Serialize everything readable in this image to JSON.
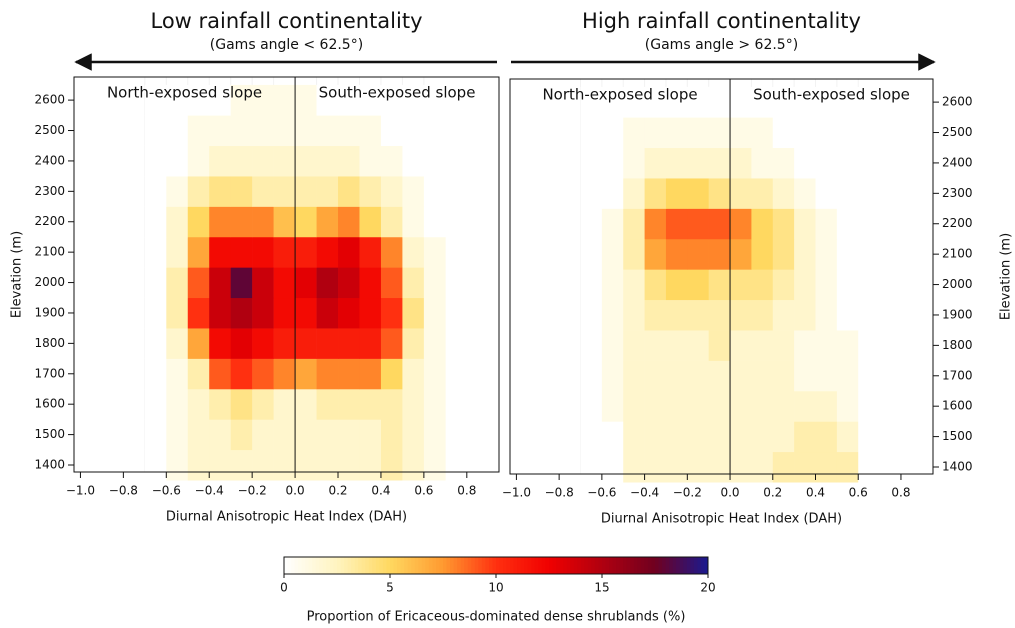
{
  "chart_data": [
    {
      "type": "heatmap",
      "title": "Low rainfall continentality",
      "subtitle": "(Gams angle < 62.5°)",
      "left_label": "North-exposed slope",
      "right_label": "South-exposed slope",
      "xlabel": "Diurnal Anisotropic Heat Index (DAH)",
      "ylabel": "Elevation (m)",
      "yaxis_side": "left",
      "vline": 0,
      "xlim": [
        -1.03,
        0.95
      ],
      "ylim": [
        1377,
        2676
      ],
      "xticks": [
        {
          "value": -1.0,
          "label": "−1.0"
        },
        {
          "value": -0.8,
          "label": "−0.8"
        },
        {
          "value": -0.6,
          "label": "−0.6"
        },
        {
          "value": -0.4,
          "label": "−0.4"
        },
        {
          "value": -0.2,
          "label": "−0.2"
        },
        {
          "value": 0,
          "label": "0.0"
        },
        {
          "value": 0.2,
          "label": "0.2"
        },
        {
          "value": 0.4,
          "label": "0.4"
        },
        {
          "value": 0.6,
          "label": "0.6"
        },
        {
          "value": 0.8,
          "label": "0.8"
        }
      ],
      "yticks": [
        1400,
        1500,
        1600,
        1700,
        1800,
        1900,
        2000,
        2100,
        2200,
        2300,
        2400,
        2500,
        2600
      ],
      "x": [
        -0.65,
        -0.55,
        -0.45,
        -0.35,
        -0.25,
        -0.15,
        -0.05,
        0.05,
        0.15,
        0.25,
        0.35,
        0.45,
        0.55,
        0.65
      ],
      "y": [
        1400,
        1500,
        1600,
        1700,
        1800,
        1900,
        2000,
        2100,
        2200,
        2300,
        2400,
        2500,
        2600
      ],
      "z": [
        [
          0,
          1,
          2,
          2,
          2,
          2,
          2,
          2,
          2,
          2,
          2,
          3,
          2,
          1
        ],
        [
          0,
          1,
          2,
          2,
          3,
          2,
          2,
          2,
          2,
          2,
          2,
          3,
          2,
          1
        ],
        [
          0,
          1,
          2,
          3,
          4,
          3,
          2,
          2,
          3,
          3,
          3,
          3,
          2,
          1
        ],
        [
          0,
          1,
          3,
          9,
          10,
          9,
          8,
          7,
          8,
          8,
          8,
          5,
          2,
          1
        ],
        [
          0,
          2,
          7,
          12,
          13,
          12,
          11,
          11,
          11,
          11,
          11,
          9,
          3,
          1
        ],
        [
          0,
          3,
          10,
          14,
          15,
          14,
          12,
          12,
          14,
          13,
          12,
          10,
          4,
          1
        ],
        [
          0,
          3,
          9,
          14,
          18,
          14,
          12,
          13,
          15,
          14,
          12,
          9,
          3,
          1
        ],
        [
          0,
          2,
          7,
          12,
          12,
          12,
          11,
          11,
          12,
          13,
          11,
          8,
          2,
          1
        ],
        [
          0,
          2,
          5,
          8,
          8,
          8,
          6,
          5,
          7,
          8,
          5,
          3,
          1,
          0
        ],
        [
          0,
          1,
          3,
          4,
          4,
          3,
          3,
          3,
          3,
          4,
          3,
          2,
          1,
          0
        ],
        [
          0,
          0,
          1,
          2,
          2,
          2,
          2,
          2,
          2,
          2,
          1,
          1,
          0,
          0
        ],
        [
          0,
          0,
          1,
          1,
          1,
          1,
          1,
          1,
          1,
          1,
          1,
          0,
          0,
          0
        ],
        [
          0,
          0,
          0,
          0,
          1,
          1,
          1,
          1,
          0,
          0,
          0,
          0,
          0,
          0
        ]
      ]
    },
    {
      "type": "heatmap",
      "title": "High rainfall continentality",
      "subtitle": "(Gams angle > 62.5°)",
      "left_label": "North-exposed slope",
      "right_label": "South-exposed slope",
      "xlabel": "Diurnal Anisotropic Heat Index (DAH)",
      "ylabel": "Elevation (m)",
      "yaxis_side": "right",
      "vline": 0,
      "xlim": [
        -1.03,
        0.95
      ],
      "ylim": [
        1377,
        2676
      ],
      "xticks": [
        {
          "value": -1.0,
          "label": "−1.0"
        },
        {
          "value": -0.8,
          "label": "−0.8"
        },
        {
          "value": -0.6,
          "label": "−0.6"
        },
        {
          "value": -0.4,
          "label": "−0.4"
        },
        {
          "value": -0.2,
          "label": "−0.2"
        },
        {
          "value": 0,
          "label": "0.0"
        },
        {
          "value": 0.2,
          "label": "0.2"
        },
        {
          "value": 0.4,
          "label": "0.4"
        },
        {
          "value": 0.6,
          "label": "0.6"
        },
        {
          "value": 0.8,
          "label": "0.8"
        }
      ],
      "yticks": [
        1400,
        1500,
        1600,
        1700,
        1800,
        1900,
        2000,
        2100,
        2200,
        2300,
        2400,
        2500,
        2600
      ],
      "x": [
        -0.65,
        -0.55,
        -0.45,
        -0.35,
        -0.25,
        -0.15,
        -0.05,
        0.05,
        0.15,
        0.25,
        0.35,
        0.45,
        0.55,
        0.65
      ],
      "y": [
        1400,
        1500,
        1600,
        1700,
        1800,
        1900,
        2000,
        2100,
        2200,
        2300,
        2400,
        2500,
        2600
      ],
      "z": [
        [
          0,
          0,
          2,
          2,
          2,
          2,
          2,
          2,
          2,
          3,
          3,
          3,
          3,
          0
        ],
        [
          0,
          0,
          2,
          2,
          2,
          2,
          2,
          2,
          2,
          2,
          3,
          3,
          2,
          0
        ],
        [
          0,
          1,
          2,
          2,
          2,
          2,
          2,
          2,
          2,
          2,
          2,
          2,
          1,
          0
        ],
        [
          0,
          1,
          2,
          2,
          2,
          2,
          2,
          2,
          2,
          2,
          1,
          1,
          1,
          0
        ],
        [
          0,
          1,
          2,
          2,
          2,
          2,
          3,
          2,
          2,
          2,
          1,
          1,
          1,
          0
        ],
        [
          0,
          1,
          2,
          3,
          3,
          3,
          3,
          3,
          3,
          2,
          2,
          1,
          0,
          0
        ],
        [
          0,
          1,
          2,
          4,
          5,
          5,
          4,
          4,
          4,
          3,
          2,
          1,
          0,
          0
        ],
        [
          0,
          1,
          3,
          7,
          8,
          8,
          8,
          7,
          5,
          4,
          2,
          1,
          0,
          0
        ],
        [
          0,
          1,
          3,
          8,
          9,
          9,
          9,
          8,
          5,
          4,
          2,
          1,
          0,
          0
        ],
        [
          0,
          0,
          2,
          4,
          5,
          5,
          4,
          3,
          3,
          2,
          1,
          0,
          0,
          0
        ],
        [
          0,
          0,
          1,
          2,
          2,
          2,
          2,
          2,
          1,
          1,
          0,
          0,
          0,
          0
        ],
        [
          0,
          0,
          1,
          1,
          1,
          1,
          1,
          1,
          1,
          0,
          0,
          0,
          0,
          0
        ],
        [
          0,
          0,
          0,
          0,
          0,
          0,
          0,
          0,
          0,
          0,
          0,
          0,
          0,
          0
        ]
      ]
    }
  ],
  "colorbar": {
    "label": "Proportion of Ericaceous-dominated dense shrublands (%)",
    "zlim": [
      0,
      20
    ],
    "ticks": [
      0,
      5,
      10,
      15,
      20
    ],
    "colors": [
      "#ffffff",
      "#fff4c0",
      "#ffd860",
      "#ff9a30",
      "#ff3010",
      "#f00000",
      "#b00010",
      "#700020",
      "#1a1a90"
    ]
  }
}
